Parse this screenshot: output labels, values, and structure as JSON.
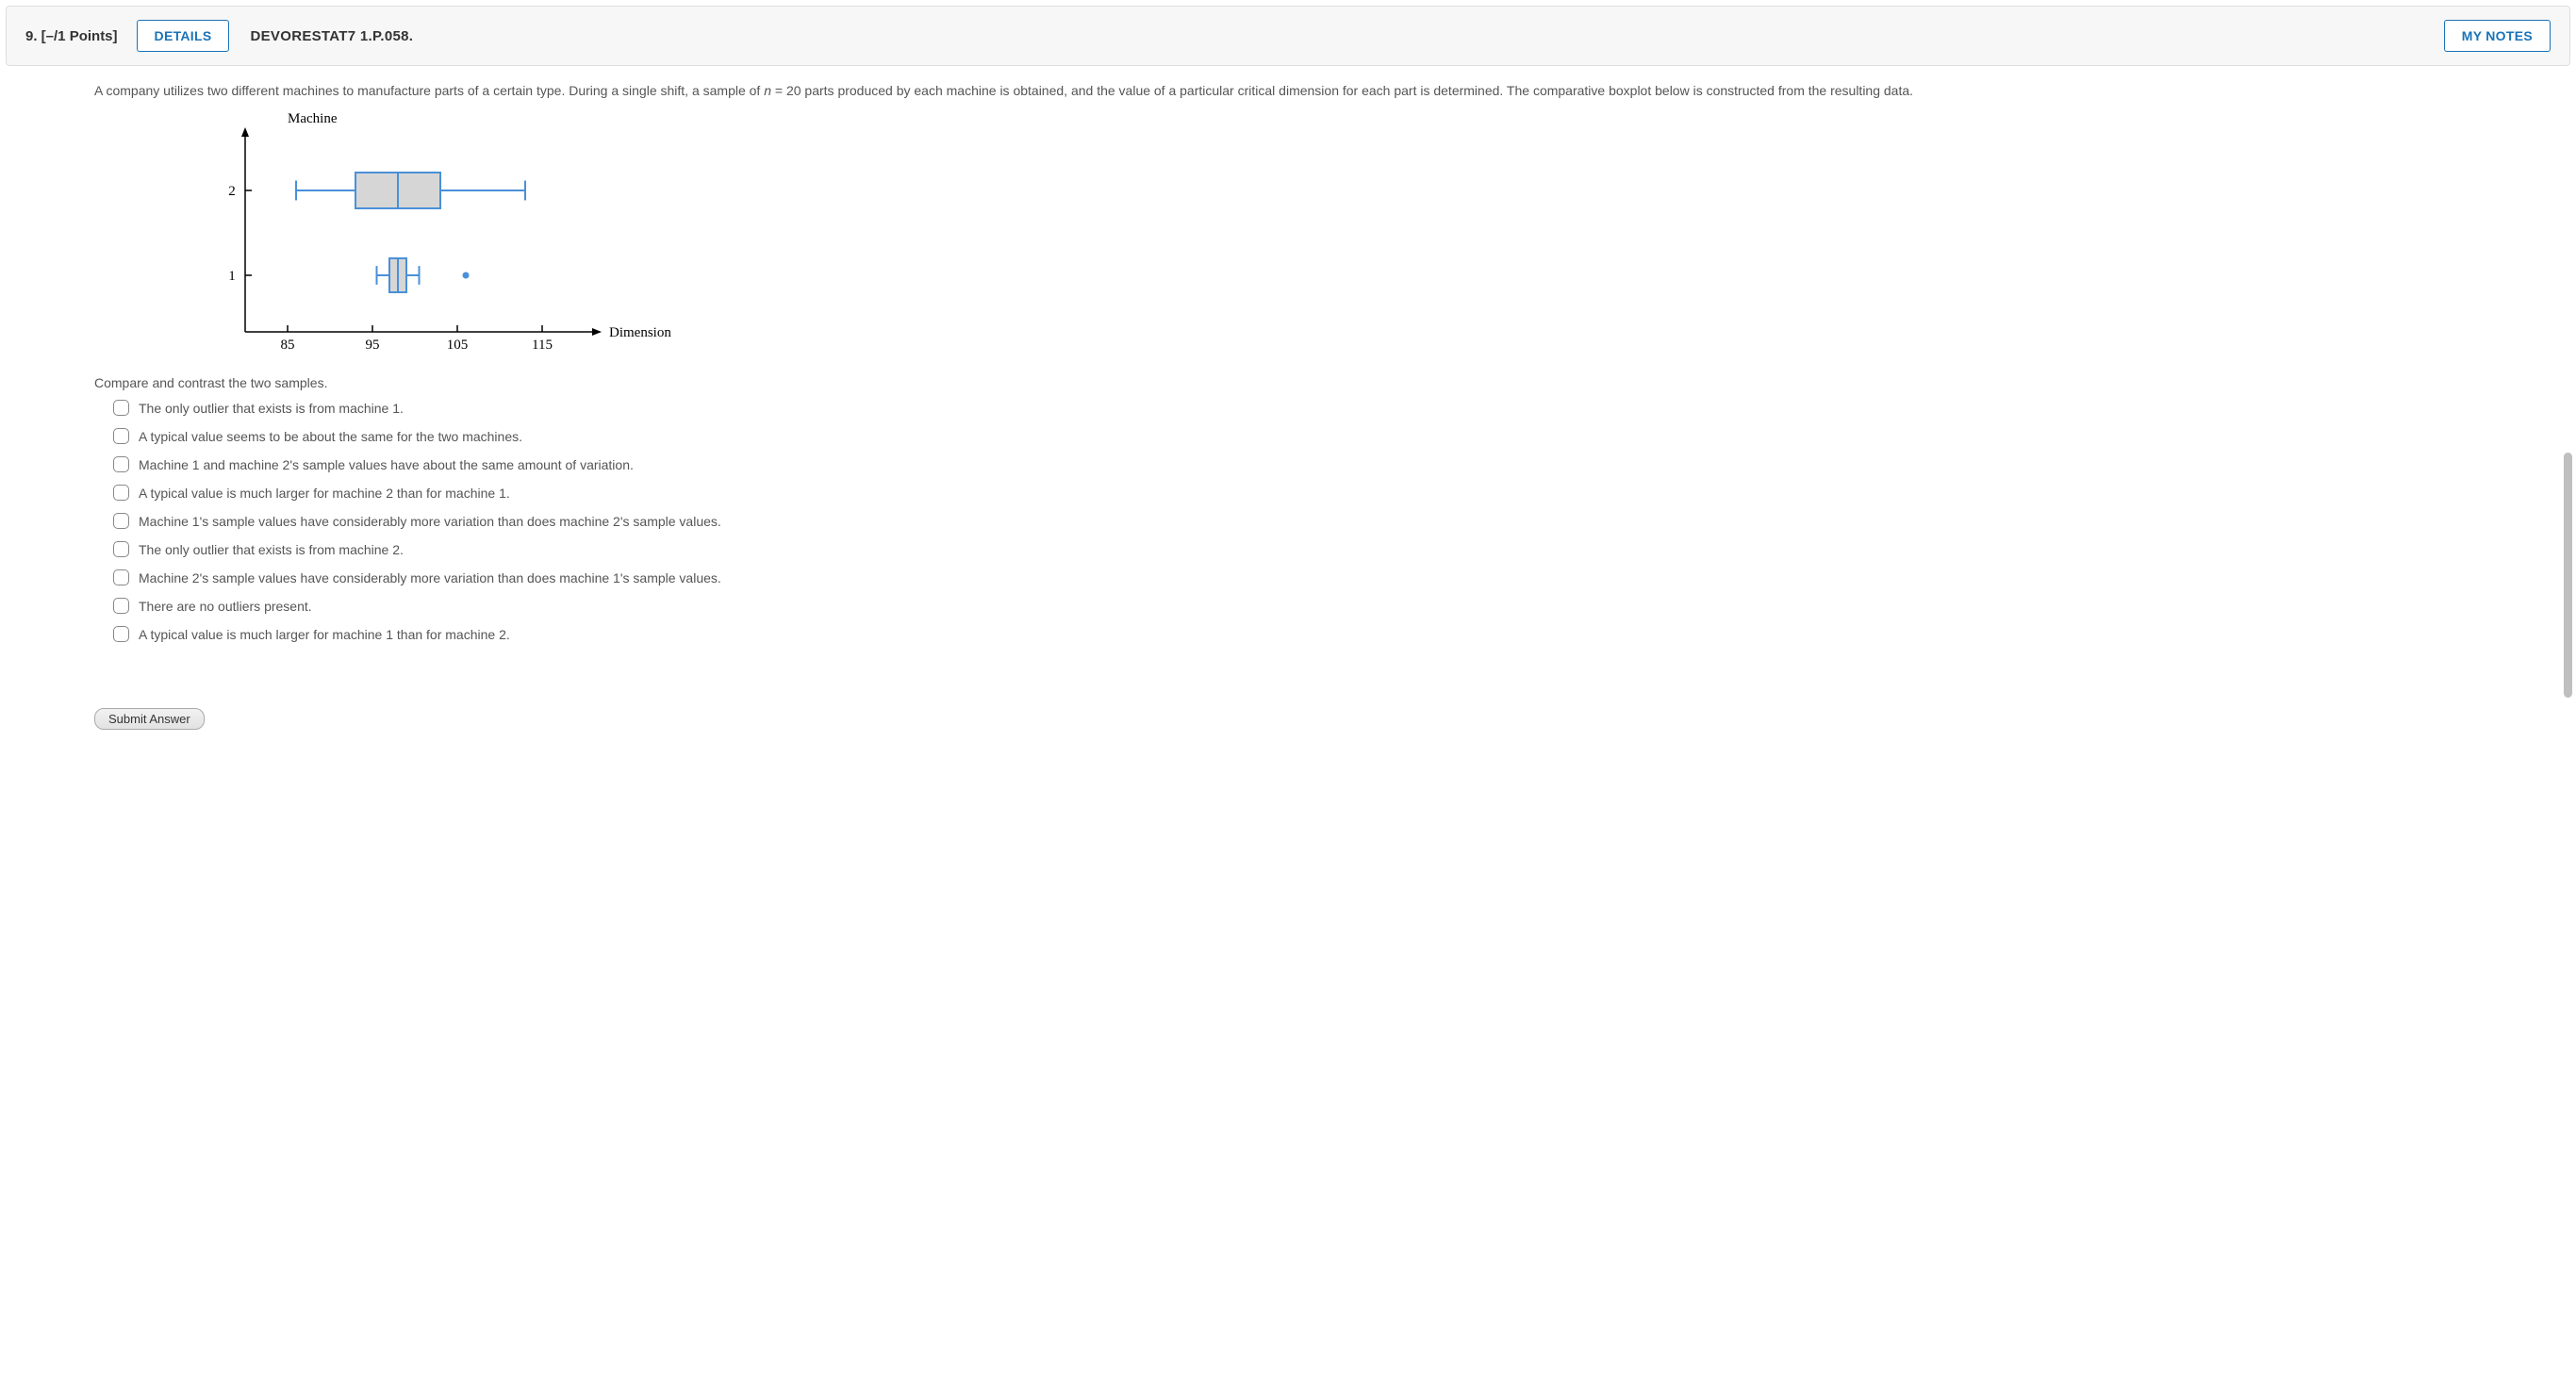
{
  "header": {
    "points": "9.  [–/1 Points]",
    "details_label": "DETAILS",
    "reference": "DEVORESTAT7 1.P.058.",
    "notes_label": "MY NOTES"
  },
  "problem": {
    "text_pre": "A company utilizes two different machines to manufacture parts of a certain type. During a single shift, a sample of ",
    "n_var": "n",
    "text_mid": " = 20 parts produced by each machine is obtained, and the value of a particular critical dimension for each part is determined. The comparative boxplot below is constructed from the resulting data."
  },
  "chart": {
    "type": "boxplot",
    "y_axis_label": "Machine",
    "x_axis_label": "Dimension",
    "y_ticks": [
      "2",
      "1"
    ],
    "x_ticks": [
      85,
      95,
      105,
      115
    ],
    "x_range": [
      80,
      120
    ],
    "box_fill": "#d6d6d6",
    "box_stroke": "#4a90d9",
    "whisker_color": "#4a90d9",
    "outlier_color": "#4a90d9",
    "axis_color": "#000000",
    "text_color": "#000000",
    "font_family": "serif",
    "machine2": {
      "whisker_low": 86,
      "q1": 93,
      "median": 98,
      "q3": 103,
      "whisker_high": 113,
      "outliers": []
    },
    "machine1": {
      "whisker_low": 95.5,
      "q1": 97,
      "median": 98,
      "q3": 99,
      "whisker_high": 100.5,
      "outliers": [
        106
      ]
    }
  },
  "prompt": "Compare and contrast the two samples.",
  "options": [
    "The only outlier that exists is from machine 1.",
    "A typical value seems to be about the same for the two machines.",
    "Machine 1 and machine 2's sample values have about the same amount of variation.",
    "A typical value is much larger for machine 2 than for machine 1.",
    "Machine 1's sample values have considerably more variation than does machine 2's sample values.",
    "The only outlier that exists is from machine 2.",
    "Machine 2's sample values have considerably more variation than does machine 1's sample values.",
    "There are no outliers present.",
    "A typical value is much larger for machine 1 than for machine 2."
  ],
  "submit_label": "Submit Answer"
}
